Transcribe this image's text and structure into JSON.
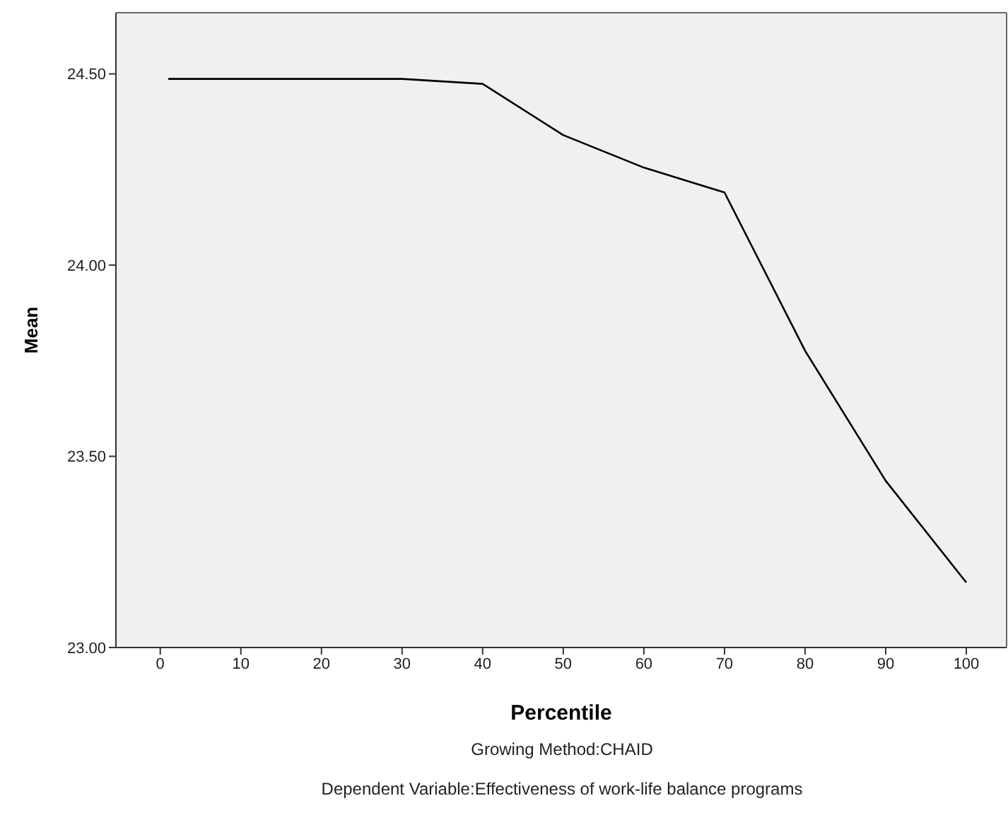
{
  "chart_data": {
    "type": "line",
    "xlabel": "Percentile",
    "ylabel": "Mean",
    "x": [
      1,
      10,
      20,
      30,
      40,
      50,
      60,
      70,
      80,
      90,
      100
    ],
    "series": [
      {
        "color": "#000000",
        "values": [
          24.487,
          24.487,
          24.487,
          24.487,
          24.474,
          24.34,
          24.255,
          24.19,
          23.776,
          23.436,
          23.17
        ]
      }
    ],
    "xlim": [
      -5.5,
      105
    ],
    "xticks": [
      0,
      10,
      20,
      30,
      40,
      50,
      60,
      70,
      80,
      90,
      100
    ],
    "ylim": [
      23,
      24.66
    ],
    "yticks": [
      {
        "value": 23,
        "label": "23.00"
      },
      {
        "value": 23.5,
        "label": "23.50"
      },
      {
        "value": 24,
        "label": "24.00"
      },
      {
        "value": 24.5,
        "label": "24.50"
      }
    ],
    "grid": false,
    "legend": false,
    "marker": "none",
    "line_style": "solid",
    "annotations": [
      "Growing Method:CHAID",
      "Dependent Variable:Effectiveness of work-life balance programs"
    ]
  }
}
